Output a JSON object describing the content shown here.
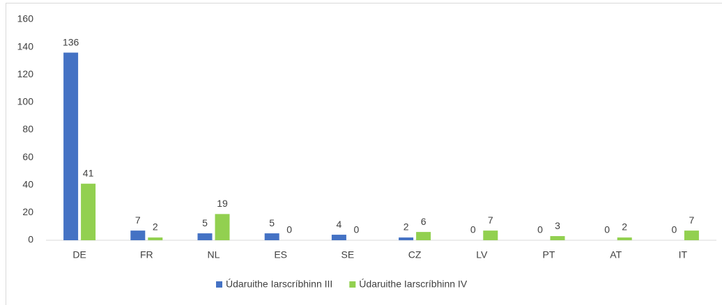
{
  "chart_data": {
    "type": "bar",
    "categories": [
      "DE",
      "FR",
      "NL",
      "ES",
      "SE",
      "CZ",
      "LV",
      "PT",
      "AT",
      "IT"
    ],
    "series": [
      {
        "name": "Údaruithe Iarscríbhinn III",
        "color": "#4472c4",
        "values": [
          136,
          7,
          5,
          5,
          4,
          2,
          0,
          0,
          0,
          0
        ]
      },
      {
        "name": "Údaruithe Iarscríbhinn IV",
        "color": "#92d050",
        "values": [
          41,
          2,
          19,
          0,
          0,
          6,
          7,
          3,
          2,
          7
        ]
      }
    ],
    "ylim": [
      0,
      160
    ],
    "yticks": [
      0,
      20,
      40,
      60,
      80,
      100,
      120,
      140,
      160
    ],
    "grid": false,
    "legend": "bottom"
  }
}
